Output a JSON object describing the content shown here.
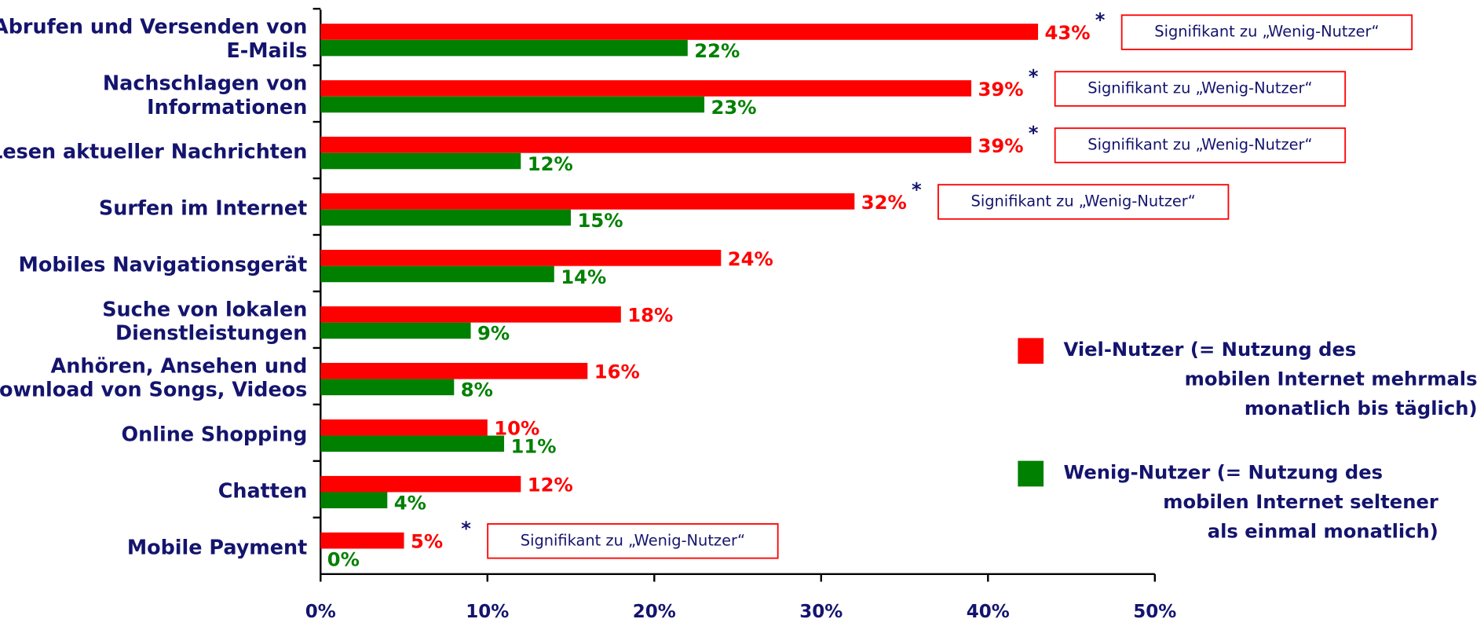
{
  "chart_data": {
    "type": "bar",
    "orientation": "horizontal",
    "categories": [
      "Abrufen und Versenden von\nE-Mails",
      "Nachschlagen von\nInformationen",
      "Lesen aktueller Nachrichten",
      "Surfen im Internet",
      "Mobiles Navigationsgerät",
      "Suche von lokalen\nDienstleistungen",
      "Anhören, Ansehen und\nDownload von Songs, Videos",
      "Online Shopping",
      "Chatten",
      "Mobile Payment"
    ],
    "series": [
      {
        "name": "Viel-Nutzer (= Nutzung des\nmobilen Internet mehrmals\nmonatlich bis täglich)",
        "color": "#ff0000",
        "values": [
          43,
          39,
          39,
          32,
          24,
          18,
          16,
          10,
          12,
          5
        ],
        "value_labels": [
          "43%",
          "39%",
          "39%",
          "32%",
          "24%",
          "18%",
          "16%",
          "10%",
          "12%",
          "5%"
        ]
      },
      {
        "name": "Wenig-Nutzer (= Nutzung des\nmobilen Internet seltener\nals einmal monatlich)",
        "color": "#008000",
        "values": [
          22,
          23,
          12,
          15,
          14,
          9,
          8,
          11,
          4,
          0
        ],
        "value_labels": [
          "22%",
          "23%",
          "12%",
          "15%",
          "14%",
          "9%",
          "8%",
          "11%",
          "4%",
          "0%"
        ]
      }
    ],
    "annotations": [
      {
        "category": "Abrufen und Versenden von\nE-Mails",
        "marker": "*",
        "text": "Signifikant zu „Wenig-Nutzer“"
      },
      {
        "category": "Nachschlagen von\nInformationen",
        "marker": "*",
        "text": "Signifikant zu „Wenig-Nutzer“"
      },
      {
        "category": "Lesen aktueller Nachrichten",
        "marker": "*",
        "text": "Signifikant zu „Wenig-Nutzer“"
      },
      {
        "category": "Surfen im Internet",
        "marker": "*",
        "text": "Signifikant zu „Wenig-Nutzer“"
      },
      {
        "category": "Mobile Payment",
        "marker": "*",
        "text": "Signifikant zu „Wenig-Nutzer“"
      }
    ],
    "xlim": [
      0,
      50
    ],
    "xticks": [
      {
        "value": 0,
        "label": "0%"
      },
      {
        "value": 10,
        "label": "10%"
      },
      {
        "value": 20,
        "label": "20%"
      },
      {
        "value": 30,
        "label": "30%"
      },
      {
        "value": 40,
        "label": "40%"
      },
      {
        "value": 50,
        "label": "50%"
      }
    ],
    "legend": "right"
  }
}
